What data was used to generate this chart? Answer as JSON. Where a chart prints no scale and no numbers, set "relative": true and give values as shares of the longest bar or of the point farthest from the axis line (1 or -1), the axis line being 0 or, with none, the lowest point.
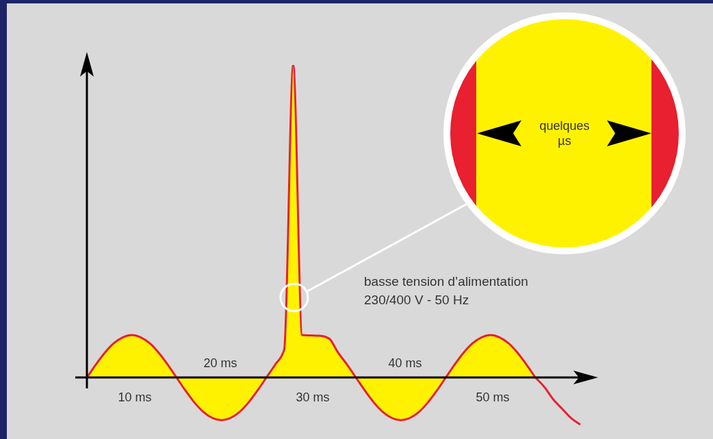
{
  "chart_data": {
    "type": "area",
    "relative": true,
    "categories": [
      null,
      null,
      null,
      null,
      null,
      null,
      null,
      null,
      null,
      null,
      null,
      null,
      null,
      null,
      null,
      null,
      null,
      null,
      null,
      null,
      null,
      null,
      null,
      null,
      null,
      null,
      null,
      null,
      null,
      null,
      null,
      null,
      null,
      null,
      null,
      null,
      null,
      null,
      null,
      null,
      null,
      null,
      null,
      null,
      null,
      null,
      null,
      null,
      null,
      null,
      null,
      null,
      null,
      null,
      null,
      null
    ],
    "series": [
      {
        "color": "#fff200",
        "values": [
          0,
          0.042,
          0.08,
          0.11,
          0.129,
          0.136,
          0.129,
          0.11,
          0.08,
          0.042,
          0,
          -0.042,
          -0.08,
          -0.11,
          -0.129,
          -0.136,
          -0.129,
          -0.11,
          -0.08,
          -0.042,
          0,
          0.042,
          0.09,
          1,
          0.136,
          0.135,
          0.134,
          0.125,
          0.08,
          0.042,
          0,
          -0.042,
          -0.08,
          -0.11,
          -0.129,
          -0.136,
          -0.129,
          -0.11,
          -0.08,
          -0.042,
          0,
          0.042,
          0.08,
          0.11,
          0.129,
          0.136,
          0.129,
          0.11,
          0.08,
          0.042,
          0,
          null,
          null,
          null,
          null,
          null
        ]
      },
      {
        "type": "line",
        "color": "#e8202f",
        "values": [
          null,
          null,
          null,
          null,
          null,
          null,
          null,
          null,
          null,
          null,
          null,
          null,
          null,
          null,
          null,
          null,
          null,
          null,
          null,
          null,
          null,
          null,
          null,
          null,
          null,
          null,
          null,
          null,
          null,
          null,
          null,
          null,
          null,
          null,
          null,
          null,
          null,
          null,
          null,
          null,
          null,
          null,
          null,
          null,
          null,
          null,
          null,
          null,
          null,
          null,
          0,
          -0.03,
          -0.07,
          -0.1,
          -0.13,
          -0.15
        ]
      }
    ],
    "annotations": [
      "10 ms",
      "20 ms",
      "30 ms",
      "40 ms",
      "50 ms",
      "basse tension d’alimentation",
      "230/400 V - 50 Hz",
      "quelques µs"
    ]
  }
}
